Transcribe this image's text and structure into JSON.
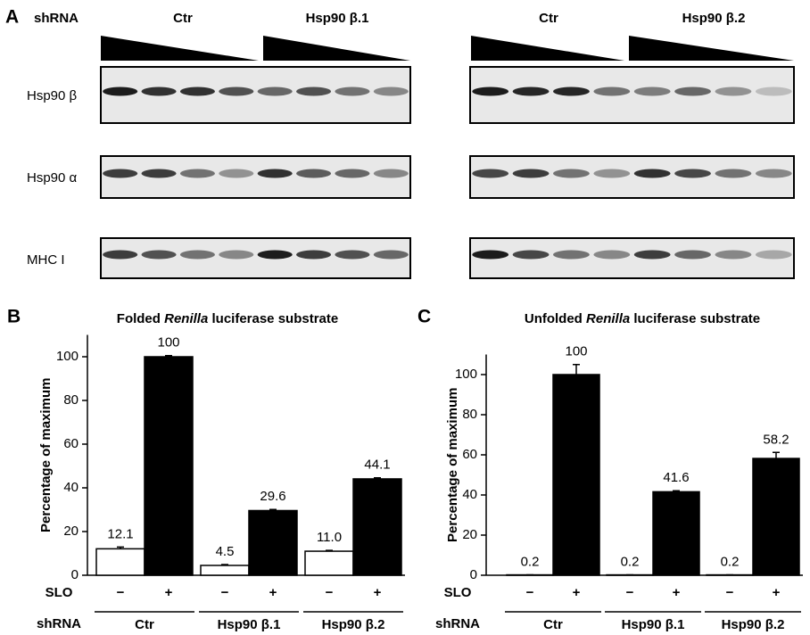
{
  "panel_a": {
    "label": "A",
    "shrna_label": "shRNA",
    "left_groups": [
      "Ctr",
      "Hsp90 β.1"
    ],
    "right_groups": [
      "Ctr",
      "Hsp90 β.2"
    ],
    "rows": [
      "Hsp90 β",
      "Hsp90 α",
      "MHC I"
    ]
  },
  "chart_data": [
    {
      "type": "bar",
      "panel": "B",
      "title": {
        "before": "Folded",
        "italic": "Renilla",
        "after": "luciferase substrate"
      },
      "ylabel": "Percentage of maximum",
      "categories": [
        "−",
        "+",
        "−",
        "+",
        "−",
        "+"
      ],
      "x_label": "SLO",
      "groups": [
        "Ctr",
        "Hsp90 β.1",
        "Hsp90 β.2"
      ],
      "group_label": "shRNA",
      "values": [
        12.1,
        100,
        4.5,
        29.6,
        11.0,
        44.1
      ],
      "value_labels": [
        "12.1",
        "100",
        "4.5",
        "29.6",
        "11.0",
        "44.1"
      ],
      "errors": [
        0.8,
        0.5,
        0.4,
        0.5,
        0.4,
        0.5
      ],
      "bar_colors": [
        "#ffffff",
        "#000000",
        "#ffffff",
        "#000000",
        "#ffffff",
        "#000000"
      ],
      "ylim": [
        0,
        110
      ],
      "yticks": [
        0,
        20,
        40,
        60,
        80,
        100
      ]
    },
    {
      "type": "bar",
      "panel": "C",
      "title": {
        "before": "Unfolded",
        "italic": "Renilla",
        "after": "luciferase substrate"
      },
      "ylabel": "Percentage of maximum",
      "categories": [
        "−",
        "+",
        "−",
        "+",
        "−",
        "+"
      ],
      "x_label": "SLO",
      "groups": [
        "Ctr",
        "Hsp90 β.1",
        "Hsp90 β.2"
      ],
      "group_label": "shRNA",
      "values": [
        0.2,
        100,
        0.2,
        41.6,
        0.2,
        58.2
      ],
      "value_labels": [
        "0.2",
        "100",
        "0.2",
        "41.6",
        "0.2",
        "58.2"
      ],
      "errors": [
        0,
        5,
        0,
        0.5,
        0,
        3
      ],
      "bar_colors": [
        "#ffffff",
        "#000000",
        "#ffffff",
        "#000000",
        "#ffffff",
        "#000000"
      ],
      "ylim": [
        0,
        110
      ],
      "yticks": [
        0,
        20,
        40,
        60,
        80,
        100
      ]
    }
  ]
}
